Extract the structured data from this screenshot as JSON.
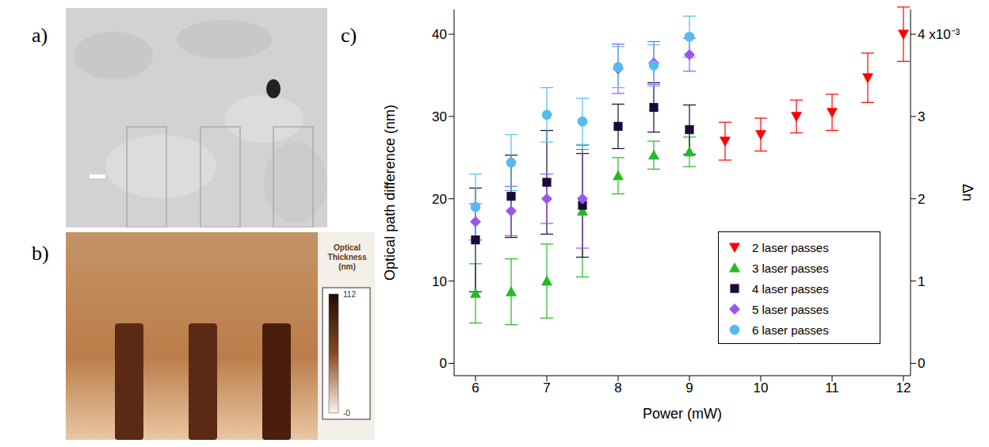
{
  "panels": {
    "a": {
      "label": "a)"
    },
    "b": {
      "label": "b)",
      "colorbar": {
        "title": "Optical Thickness (nm)",
        "range": [
          0,
          112
        ],
        "ticks": [
          {
            "value": 112,
            "label": "112"
          },
          {
            "value": 0,
            "label": "-0"
          }
        ]
      }
    },
    "c": {
      "label": "c)"
    }
  },
  "chart_data": {
    "type": "scatter",
    "x_label": "Power (mW)",
    "y_label": "Optical path difference (nm)",
    "y2_label": "Δn",
    "xlim": [
      5.7,
      12.1
    ],
    "xticks": [
      6,
      7,
      8,
      9,
      10,
      11,
      12
    ],
    "ylim": [
      -1.5,
      43
    ],
    "yticks": [
      0,
      10,
      20,
      30,
      40
    ],
    "y2lim": [
      -0.15,
      4.3
    ],
    "y2ticks": [
      0,
      1,
      2,
      3,
      {
        "value": 4,
        "label": "4 x10⁻³"
      }
    ],
    "legend": "lower right",
    "series": [
      {
        "name": "2 laser passes",
        "color": "#ff0000",
        "marker": "triangle-down",
        "x": [
          9.5,
          10,
          10.5,
          11,
          11.5,
          12
        ],
        "values": [
          27,
          27.8,
          30,
          30.5,
          34.7,
          40
        ],
        "errors": [
          2.3,
          2,
          2,
          2.2,
          3,
          3.3
        ]
      },
      {
        "name": "3 laser passes",
        "color": "#22bb22",
        "marker": "triangle-up",
        "x": [
          6,
          6.5,
          7,
          7.5,
          8,
          8.5,
          9
        ],
        "values": [
          8.5,
          8.7,
          10,
          18.5,
          22.8,
          25.3,
          25.7
        ],
        "errors": [
          3.6,
          4,
          4.5,
          8,
          2.2,
          1.7,
          1.8
        ]
      },
      {
        "name": "4 laser passes",
        "color": "#1a0a3a",
        "marker": "square",
        "x": [
          6,
          6.5,
          7,
          7.5,
          8,
          8.5,
          9
        ],
        "values": [
          15,
          20.3,
          22,
          19.2,
          28.8,
          31.1,
          28.4
        ],
        "errors": [
          6.3,
          5,
          6.3,
          6.3,
          2.7,
          3,
          3
        ]
      },
      {
        "name": "5 laser passes",
        "color": "#9955ee",
        "marker": "diamond",
        "x": [
          6,
          6.5,
          7,
          7.5,
          8,
          8.5,
          9
        ],
        "values": [
          17.2,
          18.5,
          20,
          20,
          35.8,
          36.5,
          37.5
        ],
        "errors": [
          2.2,
          3,
          3,
          6,
          3,
          2.6,
          2
        ]
      },
      {
        "name": "6 laser passes",
        "color": "#55bbee",
        "marker": "circle",
        "x": [
          6,
          6.5,
          7,
          7.5,
          8,
          8.5,
          9
        ],
        "values": [
          19,
          24.4,
          30.2,
          29.4,
          36,
          36.2,
          39.7
        ],
        "errors": [
          4,
          3.4,
          3.3,
          2.8,
          2.5,
          2.5,
          2.5
        ]
      }
    ]
  }
}
